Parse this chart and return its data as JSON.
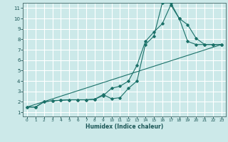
{
  "xlabel": "Humidex (Indice chaleur)",
  "bg_color": "#cce9e9",
  "grid_color": "#ffffff",
  "line_color": "#1a7068",
  "xlim_min": -0.5,
  "xlim_max": 23.5,
  "ylim_min": 0.6,
  "ylim_max": 11.5,
  "xticks": [
    0,
    1,
    2,
    3,
    4,
    5,
    6,
    7,
    8,
    9,
    10,
    11,
    12,
    13,
    14,
    15,
    16,
    17,
    18,
    19,
    20,
    21,
    22,
    23
  ],
  "yticks": [
    1,
    2,
    3,
    4,
    5,
    6,
    7,
    8,
    9,
    10,
    11
  ],
  "curve1_x": [
    0,
    1,
    2,
    3,
    4,
    5,
    6,
    7,
    8,
    9,
    10,
    11,
    12,
    13,
    14,
    15,
    16,
    17,
    18,
    19,
    20,
    21,
    22,
    23
  ],
  "curve1_y": [
    1.5,
    1.5,
    2.0,
    2.1,
    2.15,
    2.2,
    2.2,
    2.2,
    2.25,
    2.6,
    3.3,
    3.5,
    4.0,
    5.5,
    7.8,
    8.7,
    9.5,
    11.3,
    10.0,
    9.4,
    8.1,
    7.5,
    7.5,
    7.5
  ],
  "curve2_x": [
    0,
    1,
    2,
    3,
    4,
    5,
    6,
    7,
    8,
    9,
    10,
    11,
    12,
    13,
    14,
    15,
    16,
    17,
    18,
    19,
    20,
    21,
    22,
    23
  ],
  "curve2_y": [
    1.5,
    1.5,
    2.0,
    2.1,
    2.15,
    2.2,
    2.2,
    2.2,
    2.25,
    2.7,
    2.3,
    2.4,
    3.3,
    4.0,
    7.5,
    8.3,
    11.5,
    11.5,
    10.0,
    7.8,
    7.5,
    7.5,
    7.5,
    7.5
  ],
  "curve3_x": [
    0,
    23
  ],
  "curve3_y": [
    1.5,
    7.5
  ]
}
